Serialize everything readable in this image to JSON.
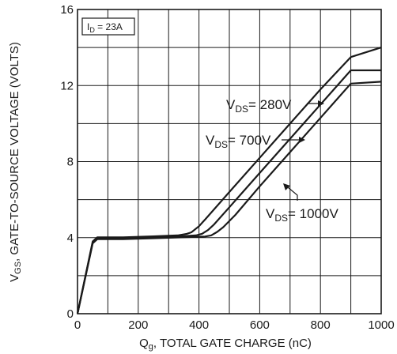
{
  "chart_data": {
    "type": "line",
    "ylabel": {
      "main": "V",
      "sub": "GS",
      "rest": ", GATE-TO-SOURCE VOLTAGE (VOLTS)"
    },
    "xlabel": {
      "main": "Q",
      "sub": "g",
      "rest": ", TOTAL GATE CHARGE (nC)"
    },
    "xlim": [
      0,
      1000
    ],
    "ylim": [
      0,
      16
    ],
    "xticks": [
      0,
      200,
      400,
      600,
      800,
      1000
    ],
    "yticks": [
      0,
      4,
      8,
      12,
      16
    ],
    "grid": true,
    "annotation": {
      "main": "I",
      "sub": "D",
      "rest": " = 23A"
    },
    "series": [
      {
        "name": "V_DS = 280V",
        "label_main": "V",
        "label_sub": "DS",
        "label_rest": "= 280V",
        "x": [
          0,
          50,
          65,
          150,
          250,
          330,
          360,
          375,
          400,
          420,
          500,
          600,
          700,
          800,
          900,
          1000
        ],
        "y": [
          0,
          3.8,
          4.02,
          4.02,
          4.07,
          4.12,
          4.2,
          4.28,
          4.6,
          4.95,
          6.4,
          8.2,
          10.0,
          11.8,
          13.5,
          14.0
        ]
      },
      {
        "name": "V_DS = 700V",
        "label_main": "V",
        "label_sub": "DS",
        "label_rest": "= 700V",
        "x": [
          0,
          50,
          65,
          150,
          250,
          350,
          390,
          410,
          430,
          450,
          500,
          600,
          700,
          800,
          900,
          1000
        ],
        "y": [
          0,
          3.75,
          3.97,
          3.97,
          4.02,
          4.08,
          4.12,
          4.2,
          4.4,
          4.7,
          5.6,
          7.4,
          9.2,
          11.0,
          12.8,
          12.8
        ]
      },
      {
        "name": "V_DS = 1000V",
        "label_main": "V",
        "label_sub": "DS",
        "label_rest": "= 1000V",
        "x": [
          0,
          50,
          65,
          150,
          250,
          350,
          420,
          440,
          460,
          480,
          520,
          600,
          700,
          800,
          900,
          1000
        ],
        "y": [
          0,
          3.7,
          3.92,
          3.92,
          3.97,
          4.02,
          4.06,
          4.12,
          4.3,
          4.55,
          5.2,
          6.7,
          8.5,
          10.3,
          12.1,
          12.2
        ]
      }
    ],
    "colors": {
      "line": "#1a1a1a",
      "background": "#ffffff"
    }
  }
}
